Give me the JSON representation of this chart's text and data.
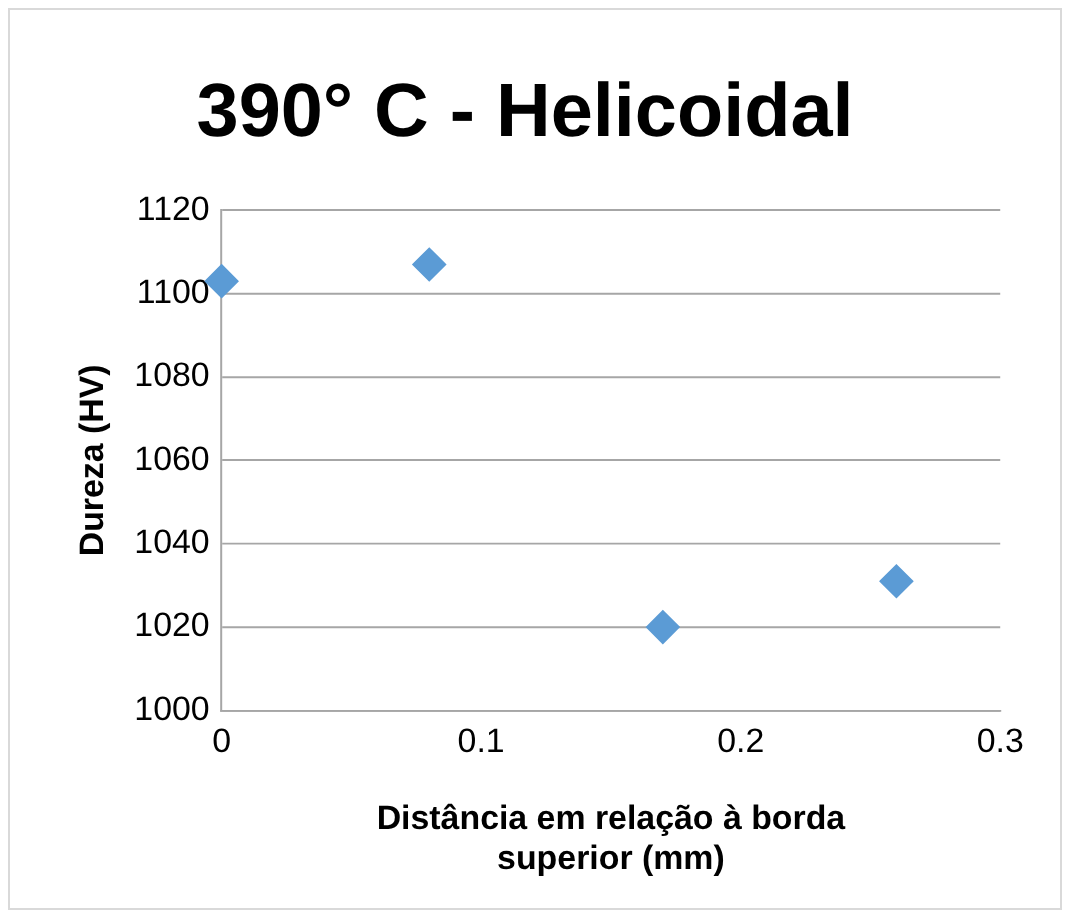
{
  "chart_data": {
    "type": "scatter",
    "title": "390° C - Helicoidal",
    "xlabel": "Distância em relação à borda superior (mm)",
    "ylabel": "Dureza (HV)",
    "x": [
      0,
      0.08,
      0.17,
      0.26
    ],
    "series": [
      {
        "color": "#5b9bd5",
        "values": [
          1103,
          1107,
          1020,
          1031
        ]
      }
    ],
    "xlim": [
      0,
      0.3
    ],
    "xticks": [
      0,
      0.1,
      0.2,
      0.3
    ],
    "ylim": [
      1000,
      1120
    ],
    "yticks": [
      1000,
      1020,
      1040,
      1060,
      1080,
      1100,
      1120
    ],
    "grid": "y",
    "legend": false,
    "marker": "diamond"
  }
}
